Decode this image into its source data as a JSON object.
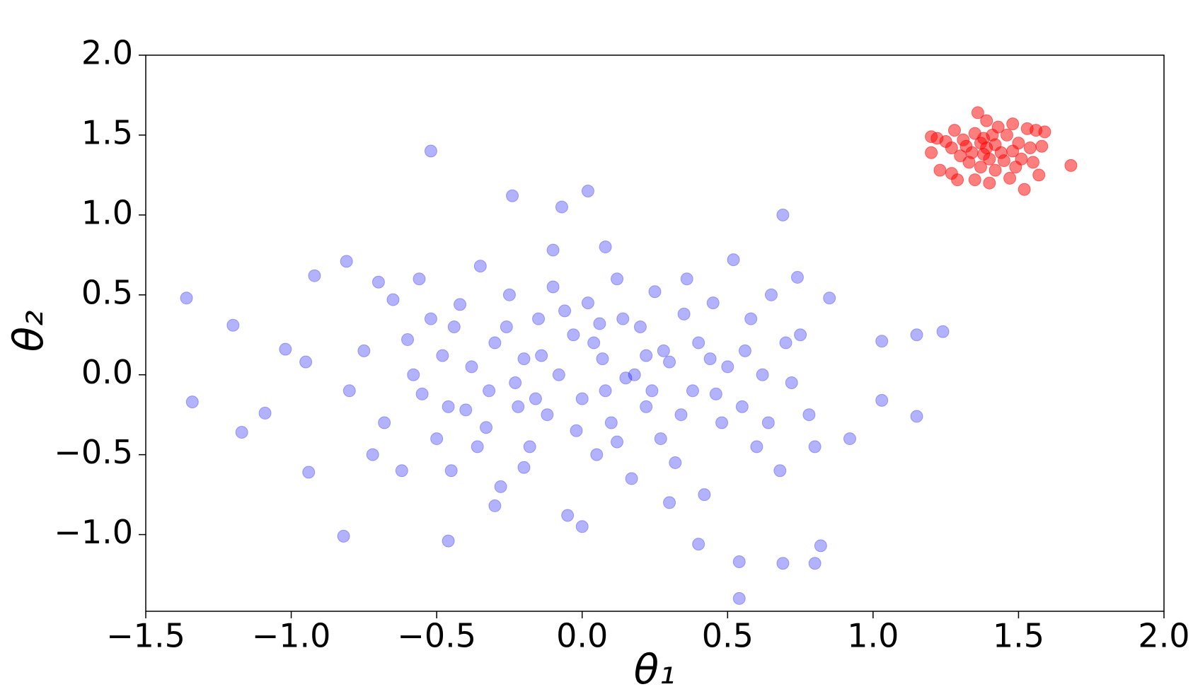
{
  "chart_data": {
    "type": "scatter",
    "xlabel": "θ₁",
    "ylabel": "θ₂",
    "xlim": [
      -1.5,
      2.0
    ],
    "ylim": [
      -1.48,
      2.0
    ],
    "xticks": [
      {
        "value": -1.5,
        "label": "−1.5"
      },
      {
        "value": -1.0,
        "label": "−1.0"
      },
      {
        "value": -0.5,
        "label": "−0.5"
      },
      {
        "value": 0.0,
        "label": "0.0"
      },
      {
        "value": 0.5,
        "label": "0.5"
      },
      {
        "value": 1.0,
        "label": "1.0"
      },
      {
        "value": 1.5,
        "label": "1.5"
      },
      {
        "value": 2.0,
        "label": "2.0"
      }
    ],
    "yticks": [
      {
        "value": -1.0,
        "label": "−1.0"
      },
      {
        "value": -0.5,
        "label": "−0.5"
      },
      {
        "value": 0.0,
        "label": "0.0"
      },
      {
        "value": 0.5,
        "label": "0.5"
      },
      {
        "value": 1.0,
        "label": "1.0"
      },
      {
        "value": 1.5,
        "label": "1.5"
      },
      {
        "value": 2.0,
        "label": "2.0"
      }
    ],
    "grid": false,
    "series": [
      {
        "color": "#0000ff",
        "opacity": 0.3,
        "x": [
          -1.36,
          -1.34,
          -1.2,
          -1.17,
          -1.09,
          -1.02,
          -0.95,
          -0.94,
          -0.92,
          -0.82,
          -0.81,
          -0.52,
          -0.46,
          -0.24,
          -0.07,
          0.02,
          0.69,
          0.54,
          0.4,
          0.54,
          0.69,
          0.8,
          0.82,
          1.15,
          1.24,
          1.15,
          1.03,
          1.03,
          0.92,
          0.85,
          0.74,
          -0.7,
          -0.65,
          -0.6,
          -0.55,
          -0.52,
          -0.5,
          -0.48,
          -0.45,
          -0.42,
          -0.4,
          -0.38,
          -0.35,
          -0.33,
          -0.3,
          -0.28,
          -0.25,
          -0.23,
          -0.2,
          -0.18,
          -0.15,
          -0.12,
          -0.1,
          -0.08,
          -0.05,
          -0.03,
          0.0,
          0.02,
          0.05,
          0.07,
          0.1,
          0.12,
          0.15,
          0.17,
          0.2,
          0.22,
          0.25,
          0.27,
          0.3,
          0.32,
          0.35,
          0.38,
          0.4,
          0.42,
          0.45,
          0.48,
          0.5,
          0.52,
          0.55,
          0.58,
          0.6,
          0.62,
          0.65,
          0.68,
          0.7,
          0.72,
          0.75,
          0.78,
          0.8,
          -0.8,
          -0.75,
          -0.72,
          -0.68,
          -0.62,
          -0.58,
          -0.56,
          -0.46,
          -0.36,
          -0.26,
          -0.22,
          -0.14,
          -0.06,
          -0.02,
          0.04,
          0.08,
          0.14,
          0.18,
          0.24,
          0.28,
          0.34,
          0.44,
          0.46,
          0.56,
          0.64,
          -0.32,
          -0.16,
          0.06,
          0.12,
          0.22,
          -0.44,
          0.36,
          -0.2,
          0.0,
          -0.1,
          0.08,
          0.3,
          -0.3
        ],
        "y": [
          0.48,
          -0.17,
          0.31,
          -0.36,
          -0.24,
          0.16,
          0.08,
          -0.61,
          0.62,
          -1.01,
          0.71,
          1.4,
          -1.04,
          1.12,
          1.05,
          1.15,
          1.0,
          -1.4,
          -1.06,
          -1.17,
          -1.18,
          -1.18,
          -1.07,
          0.25,
          0.27,
          -0.26,
          0.21,
          -0.16,
          -0.4,
          0.48,
          0.61,
          0.58,
          0.47,
          0.22,
          -0.12,
          0.35,
          -0.4,
          0.12,
          -0.6,
          0.44,
          -0.22,
          0.05,
          0.68,
          -0.33,
          0.2,
          -0.7,
          0.5,
          -0.05,
          0.1,
          -0.45,
          0.35,
          -0.25,
          0.78,
          0.0,
          -0.88,
          0.25,
          -0.15,
          0.45,
          -0.5,
          0.1,
          -0.3,
          0.6,
          -0.02,
          -0.65,
          0.3,
          -0.2,
          0.52,
          -0.4,
          0.08,
          -0.55,
          0.38,
          -0.1,
          0.2,
          -0.75,
          0.45,
          -0.3,
          0.05,
          0.72,
          -0.2,
          0.35,
          -0.45,
          0.0,
          0.5,
          -0.6,
          0.2,
          -0.05,
          0.25,
          -0.25,
          -0.45,
          -0.1,
          0.15,
          -0.5,
          -0.3,
          -0.6,
          0.0,
          0.6,
          -0.2,
          -0.45,
          0.3,
          -0.2,
          0.12,
          0.4,
          -0.35,
          0.2,
          -0.1,
          0.35,
          0.0,
          -0.1,
          0.15,
          -0.25,
          0.1,
          -0.12,
          0.15,
          -0.3,
          -0.1,
          -0.15,
          0.32,
          -0.42,
          0.12,
          0.3,
          0.6,
          -0.58,
          -0.95,
          0.55,
          0.8,
          -0.8,
          -0.82
        ]
      },
      {
        "color": "#ff0000",
        "opacity": 0.5,
        "x": [
          1.2,
          1.22,
          1.2,
          1.23,
          1.25,
          1.27,
          1.27,
          1.28,
          1.29,
          1.3,
          1.31,
          1.32,
          1.33,
          1.34,
          1.35,
          1.35,
          1.36,
          1.37,
          1.37,
          1.38,
          1.38,
          1.39,
          1.39,
          1.4,
          1.4,
          1.41,
          1.42,
          1.42,
          1.43,
          1.44,
          1.45,
          1.46,
          1.47,
          1.48,
          1.48,
          1.49,
          1.5,
          1.51,
          1.52,
          1.53,
          1.54,
          1.55,
          1.56,
          1.57,
          1.58,
          1.59,
          1.68
        ],
        "y": [
          1.49,
          1.48,
          1.39,
          1.28,
          1.46,
          1.42,
          1.26,
          1.53,
          1.22,
          1.37,
          1.47,
          1.43,
          1.33,
          1.39,
          1.51,
          1.22,
          1.64,
          1.45,
          1.3,
          1.48,
          1.38,
          1.59,
          1.42,
          1.2,
          1.35,
          1.5,
          1.28,
          1.44,
          1.55,
          1.39,
          1.34,
          1.5,
          1.23,
          1.57,
          1.4,
          1.3,
          1.45,
          1.35,
          1.16,
          1.54,
          1.42,
          1.33,
          1.53,
          1.25,
          1.43,
          1.52,
          1.31
        ]
      }
    ]
  }
}
